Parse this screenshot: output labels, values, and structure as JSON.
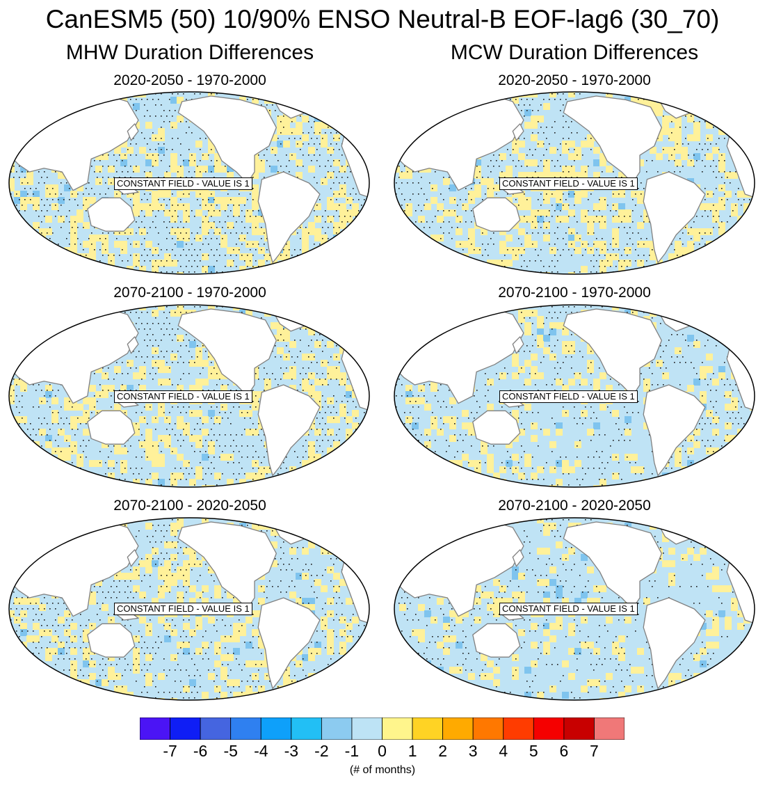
{
  "title": "CanESM5 (50) 10/90% ENSO Neutral-B EOF-lag6 (30_70)",
  "columns": [
    {
      "title": "MHW Duration Differences"
    },
    {
      "title": "MCW Duration Differences"
    }
  ],
  "panels": [
    {
      "title": "2020-2050 - 1970-2000",
      "note": "CONSTANT FIELD - VALUE IS 1",
      "yellow_share": 0.55,
      "stipple_share": 0.65
    },
    {
      "title": "2020-2050 - 1970-2000",
      "note": "CONSTANT FIELD - VALUE IS 1",
      "yellow_share": 0.55,
      "stipple_share": 0.55
    },
    {
      "title": "2070-2100 - 1970-2000",
      "note": "CONSTANT FIELD - VALUE IS 1",
      "yellow_share": 0.42,
      "stipple_share": 0.6
    },
    {
      "title": "2070-2100 - 1970-2000",
      "note": "CONSTANT FIELD - VALUE IS 1",
      "yellow_share": 0.32,
      "stipple_share": 0.45
    },
    {
      "title": "2070-2100 - 2020-2050",
      "note": "CONSTANT FIELD - VALUE IS 1",
      "yellow_share": 0.45,
      "stipple_share": 0.55
    },
    {
      "title": "2070-2100 - 2020-2050",
      "note": "CONSTANT FIELD - VALUE IS 1",
      "yellow_share": 0.3,
      "stipple_share": 0.35
    }
  ],
  "colorbar": {
    "levels": [
      "-7",
      "-6",
      "-5",
      "-4",
      "-3",
      "-2",
      "-1",
      "0",
      "1",
      "2",
      "3",
      "4",
      "5",
      "6",
      "7"
    ],
    "colors": [
      "#4b14f5",
      "#0f1ef5",
      "#4565e0",
      "#2f80f0",
      "#0ea0fa",
      "#22bff5",
      "#8ccbf0",
      "#bde3f5",
      "#fff58c",
      "#ffd324",
      "#ffaa00",
      "#ff7800",
      "#ff3c00",
      "#f50000",
      "#c80000",
      "#f07878"
    ],
    "units": "(# of months)"
  },
  "colors": {
    "ocean_yellow": "#fff19a",
    "ocean_blue": "#bfe3f5",
    "ocean_dark_blue": "#7fc4ee",
    "land": "#ffffff",
    "coast": "#808080",
    "stipple": "#1a1a1a"
  }
}
